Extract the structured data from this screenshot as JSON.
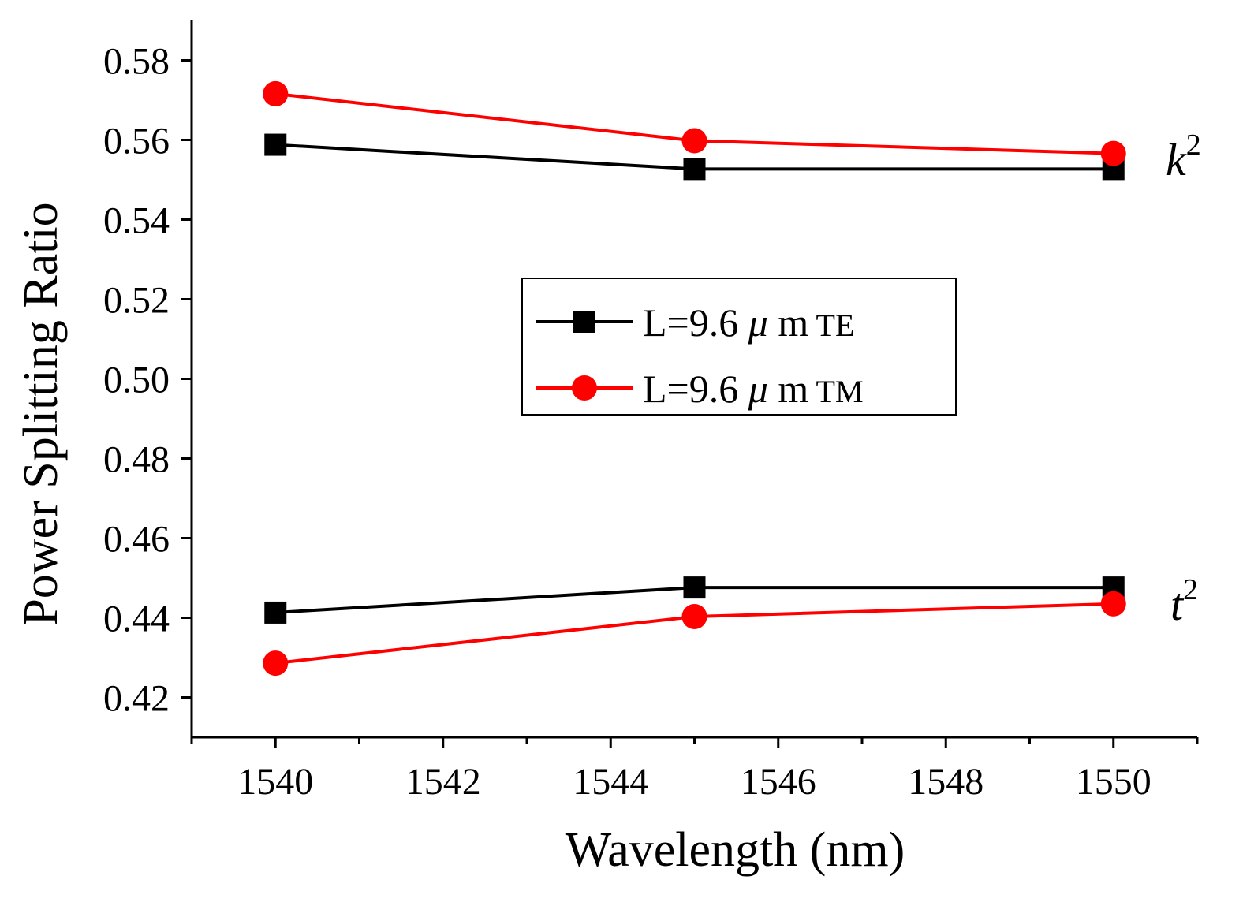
{
  "chart_data": {
    "type": "line",
    "title": "",
    "xlabel": "Wavelength (nm)",
    "ylabel": "Power Splitting Ratio",
    "xlim": [
      1539,
      1551
    ],
    "ylim": [
      0.41,
      0.59
    ],
    "x": [
      1540,
      1545,
      1550
    ],
    "x_ticks": [
      1540,
      1542,
      1544,
      1546,
      1548,
      1550
    ],
    "x_tick_labels": [
      "1540",
      "1542",
      "1544",
      "1546",
      "1548",
      "1550"
    ],
    "y_ticks": [
      0.42,
      0.44,
      0.46,
      0.48,
      0.5,
      0.52,
      0.54,
      0.56,
      0.58
    ],
    "y_tick_labels": [
      "0.42",
      "0.44",
      "0.46",
      "0.48",
      "0.50",
      "0.52",
      "0.54",
      "0.56",
      "0.58"
    ],
    "grid": false,
    "legend_position": "center",
    "series": [
      {
        "name": "L=9.6 μ m TE",
        "color": "#000000",
        "marker": "square",
        "groups": [
          {
            "label": "k2",
            "values": [
              0.5588,
              0.5527,
              0.5527
            ]
          },
          {
            "label": "t2",
            "values": [
              0.4413,
              0.4476,
              0.4476
            ]
          }
        ]
      },
      {
        "name": "L=9.6 μ m TM",
        "color": "#ff0000",
        "marker": "circle",
        "groups": [
          {
            "label": "k2",
            "values": [
              0.5716,
              0.5598,
              0.5566
            ]
          },
          {
            "label": "t2",
            "values": [
              0.4286,
              0.4403,
              0.4435
            ]
          }
        ]
      }
    ],
    "legend": [
      {
        "prefix": "L=9.6 ",
        "mu": "μ",
        "unit": " m",
        "mode": " TE"
      },
      {
        "prefix": "L=9.6 ",
        "mu": "μ",
        "unit": " m",
        "mode": " TM"
      }
    ],
    "annotations": [
      {
        "base": "k",
        "sup": "2",
        "group": "k2"
      },
      {
        "base": "t",
        "sup": "2",
        "group": "t2"
      }
    ]
  }
}
